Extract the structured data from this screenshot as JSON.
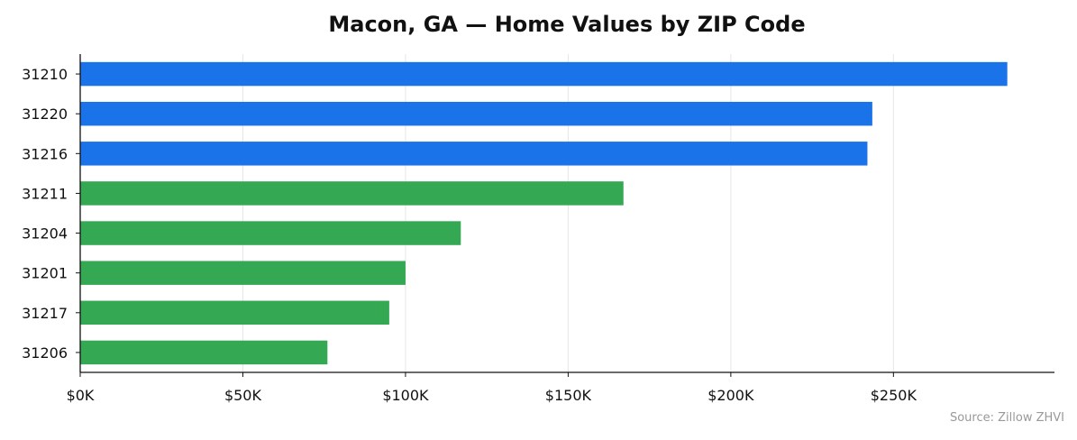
{
  "chart_data": {
    "type": "bar",
    "orientation": "horizontal",
    "title": "Macon, GA — Home Values by ZIP Code",
    "source": "Source: Zillow ZHVI",
    "categories": [
      "31210",
      "31220",
      "31216",
      "31211",
      "31204",
      "31201",
      "31217",
      "31206"
    ],
    "values": [
      285000,
      243500,
      242000,
      167000,
      117000,
      100000,
      95000,
      76000
    ],
    "bar_colors": [
      "#1a73e8",
      "#1a73e8",
      "#1a73e8",
      "#34a853",
      "#34a853",
      "#34a853",
      "#34a853",
      "#34a853"
    ],
    "xlim": [
      0,
      299500
    ],
    "x_ticks": [
      0,
      50000,
      100000,
      150000,
      200000,
      250000
    ],
    "x_tick_labels": [
      "$0K",
      "$50K",
      "$100K",
      "$150K",
      "$200K",
      "$250K"
    ],
    "xlabel": "",
    "ylabel": "",
    "grid": "x",
    "legend": "none"
  }
}
